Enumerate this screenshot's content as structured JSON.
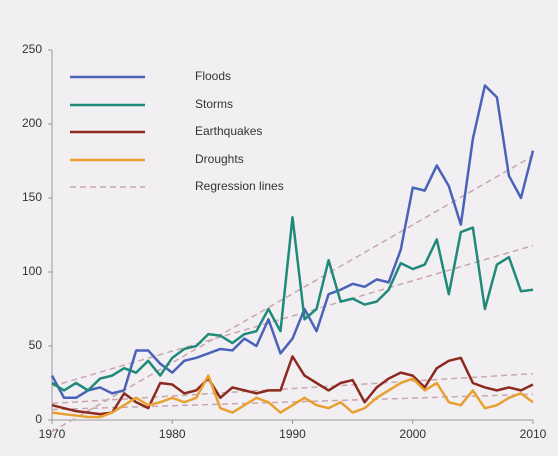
{
  "chart_data": {
    "type": "line",
    "x": [
      1970,
      1971,
      1972,
      1973,
      1974,
      1975,
      1976,
      1977,
      1978,
      1979,
      1980,
      1981,
      1982,
      1983,
      1984,
      1985,
      1986,
      1987,
      1988,
      1989,
      1990,
      1991,
      1992,
      1993,
      1994,
      1995,
      1996,
      1997,
      1998,
      1999,
      2000,
      2001,
      2002,
      2003,
      2004,
      2005,
      2006,
      2007,
      2008,
      2009,
      2010
    ],
    "series": [
      {
        "name": "Floods",
        "color": "#4a63b8",
        "values": [
          30,
          15,
          15,
          20,
          22,
          18,
          20,
          47,
          47,
          38,
          32,
          40,
          42,
          45,
          48,
          47,
          55,
          50,
          68,
          45,
          55,
          75,
          60,
          85,
          88,
          92,
          90,
          95,
          93,
          115,
          157,
          155,
          172,
          158,
          132,
          190,
          226,
          218,
          165,
          150,
          182
        ]
      },
      {
        "name": "Storms",
        "color": "#1f8a7a",
        "values": [
          25,
          20,
          25,
          20,
          28,
          30,
          35,
          32,
          40,
          30,
          42,
          48,
          50,
          58,
          57,
          52,
          58,
          60,
          75,
          60,
          137,
          68,
          75,
          108,
          80,
          82,
          78,
          80,
          88,
          106,
          102,
          105,
          122,
          85,
          127,
          130,
          75,
          105,
          110,
          87,
          88
        ]
      },
      {
        "name": "Earthquakes",
        "color": "#8b2a1e",
        "values": [
          10,
          8,
          6,
          5,
          4,
          5,
          18,
          12,
          8,
          25,
          24,
          18,
          20,
          28,
          15,
          22,
          20,
          18,
          20,
          20,
          43,
          30,
          25,
          20,
          25,
          27,
          12,
          22,
          28,
          32,
          30,
          22,
          35,
          40,
          42,
          25,
          22,
          20,
          22,
          20,
          24
        ]
      },
      {
        "name": "Droughts",
        "color": "#e8a030",
        "values": [
          5,
          4,
          3,
          2,
          2,
          5,
          10,
          15,
          10,
          12,
          15,
          12,
          15,
          30,
          8,
          5,
          10,
          15,
          12,
          5,
          10,
          15,
          10,
          8,
          12,
          5,
          8,
          15,
          20,
          25,
          28,
          20,
          25,
          12,
          10,
          20,
          8,
          10,
          15,
          18,
          12
        ]
      }
    ],
    "regression": {
      "name": "Regression lines",
      "color": "#c9a6ae"
    },
    "xlim": [
      1970,
      2010
    ],
    "xticks": [
      1970,
      1980,
      1990,
      2000,
      2010
    ],
    "ylim": [
      0,
      250
    ],
    "yticks": [
      0,
      50,
      100,
      150,
      200,
      250
    ]
  }
}
